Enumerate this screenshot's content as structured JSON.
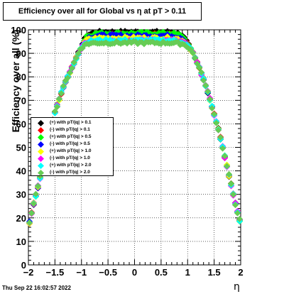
{
  "chart_data": {
    "type": "scatter",
    "title": "Efficiency over all for Global vs   η at pT > 0.11",
    "xlabel": "η",
    "ylabel": "Efficiency over all (%)",
    "xlim": [
      -2,
      2
    ],
    "ylim": [
      0,
      100
    ],
    "xticks": [
      "−2",
      "−1.5",
      "−1",
      "−0.5",
      "0",
      "0.5",
      "1",
      "1.5",
      "2"
    ],
    "xtick_values": [
      -2,
      -1.5,
      -1,
      -0.5,
      0,
      0.5,
      1,
      1.5,
      2
    ],
    "yticks": [
      "0",
      "10",
      "20",
      "30",
      "40",
      "50",
      "60",
      "70",
      "80",
      "90",
      "100"
    ],
    "ytick_values": [
      0,
      10,
      20,
      30,
      40,
      50,
      60,
      70,
      80,
      90,
      100
    ],
    "grid": true,
    "legend_position": "left-middle",
    "profile": {
      "eta": [
        -1.98,
        -1.9,
        -1.8,
        -1.7,
        -1.6,
        -1.5,
        -1.4,
        -1.3,
        -1.2,
        -1.1,
        -1.0,
        -0.9,
        -0.7,
        -0.5,
        -0.3,
        -0.1,
        0.1,
        0.3,
        0.5,
        0.7,
        0.9,
        1.0,
        1.1,
        1.2,
        1.3,
        1.4,
        1.5,
        1.6,
        1.7,
        1.8,
        1.9,
        1.98
      ],
      "eff": [
        18,
        26,
        35,
        46,
        56,
        65,
        72,
        78,
        83,
        88,
        93,
        97,
        98,
        98,
        98,
        98,
        98,
        98,
        98,
        98,
        97,
        94,
        90,
        85,
        79,
        72,
        64,
        56,
        46,
        36,
        26,
        19
      ],
      "plateau_offsets": [
        1,
        0,
        0.5,
        -0.5,
        -1.5,
        -2.5,
        -2.5,
        -3.5
      ]
    },
    "series": [
      {
        "name": "(+) with pT/|q| > 0.1",
        "color": "#000000"
      },
      {
        "name": "(-) with pT/|q| > 0.1",
        "color": "#ff0000"
      },
      {
        "name": "(+) with pT/|q| > 0.5",
        "color": "#00ff00"
      },
      {
        "name": "(-) with pT/|q| > 0.5",
        "color": "#0000ff"
      },
      {
        "name": "(+) with pT/|q| > 1.0",
        "color": "#ffff00"
      },
      {
        "name": "(-) with pT/|q| > 1.0",
        "color": "#ff00ff"
      },
      {
        "name": "(+) with pT/|q| > 2.0",
        "color": "#00ffff"
      },
      {
        "name": "(-) with pT/|q| > 2.0",
        "color": "#66cc55"
      }
    ]
  },
  "footer": {
    "date": "Thu Sep 22 16:02:57 2022"
  }
}
